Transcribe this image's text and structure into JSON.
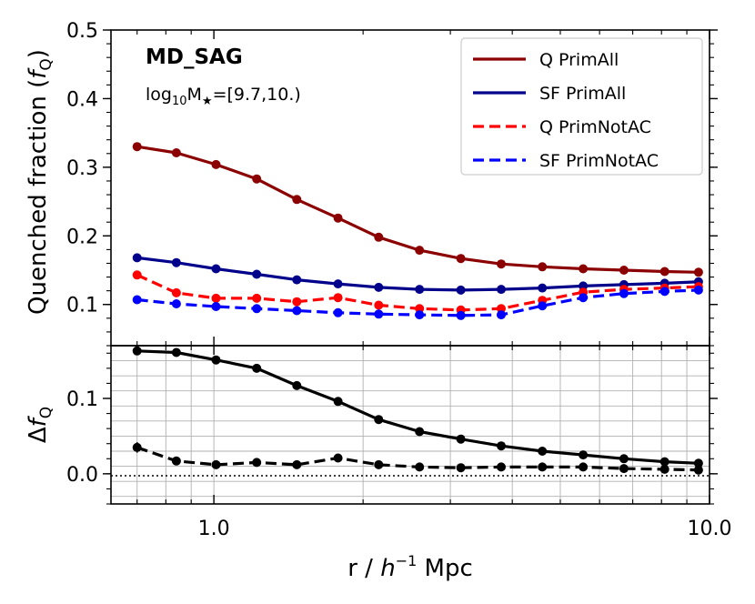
{
  "chart_data": [
    {
      "type": "line",
      "panel": "top",
      "title": "MD_SAG",
      "subtitle": {
        "prefix": "log",
        "sub": "10",
        "mid": "M",
        "sym": "★",
        "suffix": "=[9.7,10.)"
      },
      "ylabel": {
        "main": "Quenched fraction (",
        "italic": "f",
        "sub": "Q",
        "close": ")"
      },
      "xscale": "log",
      "xlim": [
        0.62,
        10.0
      ],
      "ylim": [
        0.04,
        0.5
      ],
      "yticks": [
        "0.1",
        "0.2",
        "0.3",
        "0.4",
        "0.5"
      ],
      "ytick_values": [
        0.1,
        0.2,
        0.3,
        0.4,
        0.5
      ],
      "x": [
        0.7,
        0.84,
        1.01,
        1.22,
        1.47,
        1.78,
        2.15,
        2.6,
        3.15,
        3.8,
        4.6,
        5.56,
        6.72,
        8.12,
        9.5
      ],
      "legend_position": "upper right",
      "series": [
        {
          "name": "Q PrimAll",
          "color": "#8b0000",
          "dash": false,
          "values": [
            0.33,
            0.321,
            0.304,
            0.283,
            0.253,
            0.226,
            0.198,
            0.179,
            0.167,
            0.159,
            0.155,
            0.152,
            0.15,
            0.148,
            0.147
          ]
        },
        {
          "name": "SF PrimAll",
          "color": "#00008b",
          "dash": false,
          "values": [
            0.168,
            0.161,
            0.152,
            0.144,
            0.136,
            0.13,
            0.125,
            0.122,
            0.121,
            0.122,
            0.124,
            0.127,
            0.129,
            0.131,
            0.133
          ]
        },
        {
          "name": "Q PrimNotAC",
          "color": "#ff0000",
          "dash": true,
          "values": [
            0.143,
            0.117,
            0.109,
            0.109,
            0.104,
            0.11,
            0.099,
            0.094,
            0.092,
            0.094,
            0.106,
            0.118,
            0.122,
            0.124,
            0.126
          ]
        },
        {
          "name": "SF PrimNotAC",
          "color": "#0000ff",
          "dash": true,
          "values": [
            0.107,
            0.101,
            0.097,
            0.094,
            0.091,
            0.088,
            0.086,
            0.085,
            0.084,
            0.085,
            0.098,
            0.11,
            0.116,
            0.119,
            0.121
          ]
        }
      ]
    },
    {
      "type": "line",
      "panel": "bottom",
      "ylabel": {
        "main": "Δ",
        "italic": "f",
        "sub": "Q"
      },
      "xlabel": {
        "main": "r / ",
        "italic": "h",
        "sup": "−1",
        "suffix": " Mpc"
      },
      "xscale": "log",
      "xlim": [
        0.62,
        10.0
      ],
      "ylim": [
        -0.04,
        0.17
      ],
      "xticks": [
        "1.0",
        "10.0"
      ],
      "xtick_values": [
        1.0,
        10.0
      ],
      "yticks": [
        "0.0",
        "0.1"
      ],
      "ytick_values": [
        0.0,
        0.1
      ],
      "grid": true,
      "reference_line": 0.0,
      "x": [
        0.7,
        0.84,
        1.01,
        1.22,
        1.47,
        1.78,
        2.15,
        2.6,
        3.15,
        3.8,
        4.6,
        5.56,
        6.72,
        8.12,
        9.5
      ],
      "series": [
        {
          "color": "#000000",
          "dash": false,
          "values": [
            0.163,
            0.161,
            0.151,
            0.14,
            0.117,
            0.096,
            0.072,
            0.056,
            0.046,
            0.037,
            0.03,
            0.025,
            0.02,
            0.016,
            0.014
          ]
        },
        {
          "color": "#000000",
          "dash": true,
          "values": [
            0.035,
            0.017,
            0.012,
            0.015,
            0.012,
            0.021,
            0.012,
            0.009,
            0.008,
            0.009,
            0.009,
            0.009,
            0.007,
            0.006,
            0.005
          ]
        }
      ]
    }
  ]
}
